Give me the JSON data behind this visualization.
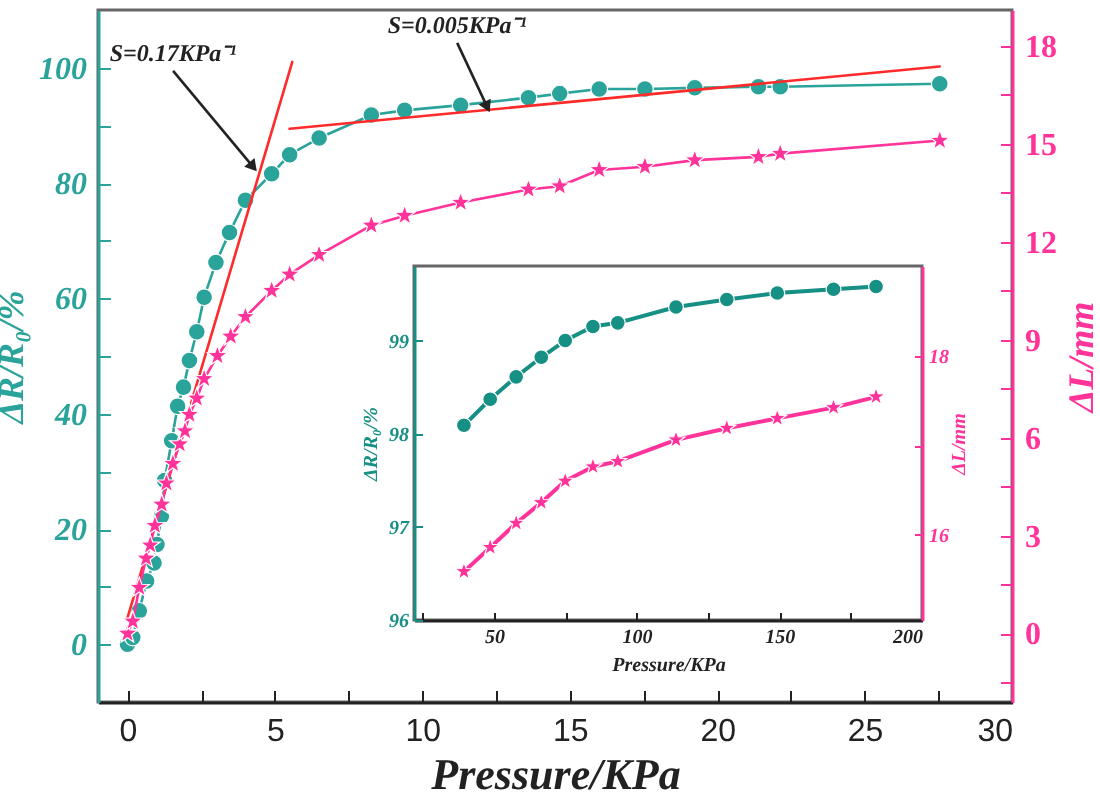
{
  "chart_data": [
    {
      "type": "line",
      "xlabel": "Pressure/KPa",
      "ylabel": "ΔR/R₀/%",
      "y2label": "ΔL/mm",
      "xlim": [
        -1,
        30
      ],
      "ylim": [
        -10,
        110
      ],
      "y2lim": [
        -2.1,
        19.1
      ],
      "xticks": [
        0,
        {
          "value": 2.5,
          "label": null
        },
        5,
        {
          "value": 7.5,
          "label": null
        },
        10,
        {
          "value": 12.5,
          "label": null
        },
        15,
        {
          "value": 17.5,
          "label": null
        },
        20,
        {
          "value": 22.5,
          "label": null
        },
        25,
        {
          "value": 27.5,
          "label": null
        },
        30
      ],
      "yticks": [
        0,
        {
          "value": 10,
          "label": null
        },
        20,
        {
          "value": 30,
          "label": null
        },
        40,
        {
          "value": 50,
          "label": null
        },
        60,
        {
          "value": 70,
          "label": null
        },
        80,
        {
          "value": 90,
          "label": null
        },
        100
      ],
      "y2ticks": [
        {
          "value": -1.5,
          "label": null
        },
        0,
        {
          "value": 1.5,
          "label": null
        },
        3,
        {
          "value": 4.5,
          "label": null
        },
        6,
        {
          "value": 7.5,
          "label": null
        },
        9,
        {
          "value": 10.5,
          "label": null
        },
        12,
        {
          "value": 13.5,
          "label": null
        },
        15,
        {
          "value": 16.5,
          "label": null
        },
        18
      ],
      "series": [
        {
          "type": "line",
          "color": "#2aa39a",
          "marker": "circle",
          "x": [
            0,
            0.18,
            0.4,
            0.65,
            0.9,
            1.0,
            1.15,
            1.26,
            1.5,
            1.7,
            1.9,
            2.1,
            2.35,
            2.6,
            3.0,
            3.46,
            4.0,
            4.89,
            5.5,
            6.5,
            8.27,
            9.4,
            11.3,
            13.6,
            14.66,
            16.0,
            17.55,
            19.24,
            21.4,
            22.14,
            27.55
          ],
          "values": [
            0,
            1.2,
            5.8,
            11,
            14.1,
            17.3,
            22.2,
            28.4,
            35.3,
            41.3,
            44.6,
            49.2,
            54.2,
            60.2,
            66.2,
            71.4,
            77,
            81.6,
            84.9,
            87.8,
            91.8,
            92.6,
            93.5,
            94.8,
            95.5,
            96.3,
            96.3,
            96.5,
            96.7,
            96.7,
            97.2
          ]
        },
        {
          "type": "line",
          "color": "#ff3399",
          "marker": "star",
          "axis": "y2",
          "x": [
            0,
            0.18,
            0.4,
            0.63,
            0.77,
            0.93,
            1.16,
            1.32,
            1.54,
            1.77,
            1.95,
            2.1,
            2.35,
            2.6,
            3.05,
            3.5,
            4.0,
            4.89,
            5.5,
            6.5,
            8.27,
            9.4,
            11.3,
            13.6,
            14.66,
            16.0,
            17.55,
            19.24,
            21.4,
            22.14,
            27.55
          ],
          "values": [
            0,
            0.37,
            1.4,
            2.3,
            2.7,
            3.3,
            3.95,
            4.6,
            5.2,
            5.8,
            6.2,
            6.7,
            7.2,
            7.8,
            8.5,
            9.1,
            9.7,
            10.5,
            11.0,
            11.6,
            12.5,
            12.8,
            13.2,
            13.6,
            13.7,
            14.2,
            14.3,
            14.5,
            14.6,
            14.7,
            15.1
          ]
        },
        {
          "type": "line",
          "color": "#ff2a2a",
          "marker": "none",
          "x": [
            0,
            5.59
          ],
          "values": [
            4.6,
            101
          ]
        },
        {
          "type": "line",
          "color": "#ff2a2a",
          "marker": "none",
          "x": [
            5.5,
            27.55
          ],
          "values": [
            89.4,
            100.2
          ]
        }
      ],
      "annotations": [
        {
          "text": "S=0.17KPa⁻¹",
          "x": 4.26,
          "y": 82.8
        },
        {
          "text": "S=0.005KPa⁻¹",
          "x": 12.2,
          "y": 93.2
        }
      ]
    },
    {
      "type": "line",
      "xlabel": "Pressure/KPa",
      "ylabel": "ΔR/R₀/%",
      "y2label": "ΔL/mm",
      "xlim": [
        22,
        200
      ],
      "ylim": [
        96,
        99.8
      ],
      "y2lim": [
        15.05,
        19
      ],
      "xticks": [
        {
          "value": 25,
          "label": null
        },
        50,
        {
          "value": 75,
          "label": null
        },
        100,
        {
          "value": 125,
          "label": null
        },
        150,
        {
          "value": 175,
          "label": null
        },
        200
      ],
      "yticks": [
        96,
        97,
        98,
        99
      ],
      "y2ticks": [
        16,
        {
          "value": 17,
          "label": null
        },
        18
      ],
      "x": [
        39.5,
        48.7,
        57.8,
        66.6,
        75,
        84.7,
        93.4,
        113.8,
        131.6,
        149.3,
        169,
        183.9
      ],
      "series": [
        {
          "type": "line",
          "color": "#168f84",
          "marker": "circle",
          "values": [
            98.09,
            98.37,
            98.61,
            98.82,
            99.0,
            99.15,
            99.19,
            99.36,
            99.44,
            99.51,
            99.55,
            99.58
          ]
        },
        {
          "type": "line",
          "color": "#ff3399",
          "marker": "star",
          "axis": "y2",
          "values": [
            15.59,
            15.86,
            16.13,
            16.36,
            16.6,
            16.76,
            16.82,
            17.06,
            17.19,
            17.3,
            17.42,
            17.54
          ]
        }
      ]
    }
  ]
}
